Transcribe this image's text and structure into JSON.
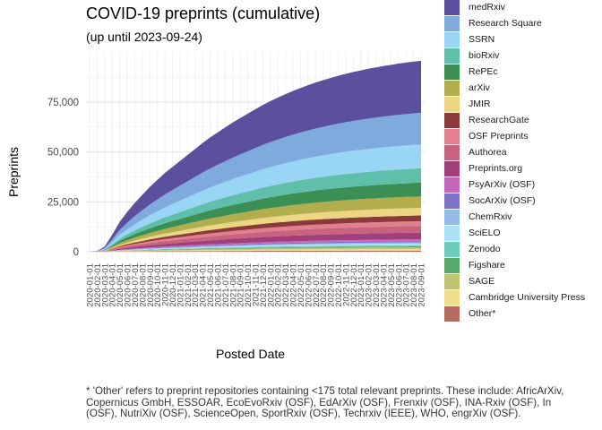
{
  "title": "COVID-19 preprints (cumulative)",
  "subtitle": "(up until 2023-09-24)",
  "footnote": [
    "* 'Other' refers to preprint repositories containing <175 total relevant preprints. These include: AfricArXiv,",
    "Copernicus GmbH, ESSOAR, EcoEvoRxiv (OSF), EdArXiv (OSF), Frenxiv (OSF), INA-Rxiv (OSF), In",
    "(OSF), NutriXiv (OSF), ScienceOpen, SportRxiv (OSF), Techrxiv (IEEE), WHO, engrXiv (OSF)."
  ],
  "legend": [
    {
      "label": "medRxiv",
      "color": "#5b4f9e"
    },
    {
      "label": "Research Square",
      "color": "#7eaade"
    },
    {
      "label": "SSRN",
      "color": "#99d6f5"
    },
    {
      "label": "bioRxiv",
      "color": "#5fbfab"
    },
    {
      "label": "RePEc",
      "color": "#3b8f54"
    },
    {
      "label": "arXiv",
      "color": "#b2ae4e"
    },
    {
      "label": "JMIR",
      "color": "#ecd681"
    },
    {
      "label": "ResearchGate",
      "color": "#8a3a3a"
    },
    {
      "label": "OSF Preprints",
      "color": "#e27e8d"
    },
    {
      "label": "Authorea",
      "color": "#c7627f"
    },
    {
      "label": "Preprints.org",
      "color": "#a13f7b"
    },
    {
      "label": "PsyArXiv (OSF)",
      "color": "#c368be"
    },
    {
      "label": "SocArXiv (OSF)",
      "color": "#7e73c9"
    },
    {
      "label": "ChemRxiv",
      "color": "#94bbe8"
    },
    {
      "label": "SciELO",
      "color": "#a9e1f7"
    },
    {
      "label": "Zenodo",
      "color": "#6fccbc"
    },
    {
      "label": "Figshare",
      "color": "#5aa86c"
    },
    {
      "label": "SAGE",
      "color": "#c2c370"
    },
    {
      "label": "Cambridge University Press",
      "color": "#f0de8c"
    },
    {
      "label": "Other*",
      "color": "#b56c62"
    }
  ],
  "chart_data": {
    "type": "area",
    "stacked": true,
    "title": "COVID-19 preprints (cumulative)",
    "subtitle": "(up until 2023-09-24)",
    "xlabel": "Posted Date",
    "ylabel": "Preprints",
    "x": [
      "2020-01-01",
      "2020-02-01",
      "2020-03-01",
      "2020-04-01",
      "2020-05-01",
      "2020-06-01",
      "2020-07-01",
      "2020-08-01",
      "2020-09-01",
      "2020-10-01",
      "2020-11-01",
      "2020-12-01",
      "2021-01-01",
      "2021-02-01",
      "2021-03-01",
      "2021-04-01",
      "2021-05-01",
      "2021-06-01",
      "2021-07-01",
      "2021-08-01",
      "2021-09-01",
      "2021-10-01",
      "2021-11-01",
      "2021-12-01",
      "2022-01-01",
      "2022-02-01",
      "2022-03-01",
      "2022-04-01",
      "2022-05-01",
      "2022-06-01",
      "2022-07-01",
      "2022-08-01",
      "2022-09-01",
      "2022-10-01",
      "2022-11-01",
      "2022-12-01",
      "2023-01-01",
      "2023-02-01",
      "2023-03-01",
      "2023-04-01",
      "2023-05-01",
      "2023-06-01",
      "2023-07-01",
      "2023-08-01",
      "2023-09-01"
    ],
    "ylim": [
      0,
      100000
    ],
    "yticks": [
      0,
      25000,
      50000,
      75000
    ],
    "ytick_labels": [
      "0",
      "25,000",
      "50,000",
      "75,000"
    ],
    "grid": true,
    "legend_position": "right",
    "totals": [
      50,
      400,
      2500,
      8500,
      15000,
      20000,
      24500,
      28500,
      32500,
      36000,
      39500,
      42500,
      45500,
      48500,
      51500,
      54500,
      57300,
      59800,
      62300,
      64800,
      67000,
      69200,
      71400,
      73600,
      75500,
      77300,
      79000,
      80600,
      82100,
      83500,
      84800,
      86000,
      87100,
      88200,
      89200,
      90100,
      90900,
      91700,
      92400,
      93100,
      93700,
      94300,
      94800,
      95300,
      95700
    ],
    "series_shares": [
      {
        "name": "Other*",
        "share": 0.006
      },
      {
        "name": "Cambridge University Press",
        "share": 0.008
      },
      {
        "name": "SAGE",
        "share": 0.009
      },
      {
        "name": "Figshare",
        "share": 0.005
      },
      {
        "name": "Zenodo",
        "share": 0.006
      },
      {
        "name": "SciELO",
        "share": 0.009
      },
      {
        "name": "ChemRxiv",
        "share": 0.006
      },
      {
        "name": "SocArXiv (OSF)",
        "share": 0.007
      },
      {
        "name": "PsyArXiv (OSF)",
        "share": 0.009
      },
      {
        "name": "Preprints.org",
        "share": 0.035
      },
      {
        "name": "Authorea",
        "share": 0.035
      },
      {
        "name": "OSF Preprints",
        "share": 0.025
      },
      {
        "name": "ResearchGate",
        "share": 0.03
      },
      {
        "name": "JMIR",
        "share": 0.04
      },
      {
        "name": "arXiv",
        "share": 0.06
      },
      {
        "name": "RePEc",
        "share": 0.072
      },
      {
        "name": "bioRxiv",
        "share": 0.075
      },
      {
        "name": "SSRN",
        "share": 0.125
      },
      {
        "name": "Research Square",
        "share": 0.166
      },
      {
        "name": "medRxiv",
        "share": 0.272
      }
    ]
  }
}
